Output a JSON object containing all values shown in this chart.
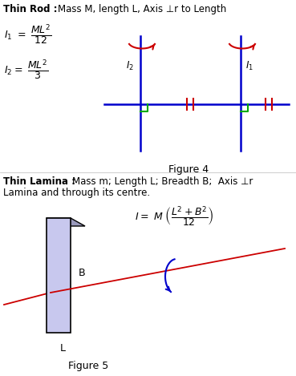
{
  "bg_color": "#ffffff",
  "title1_bold": "Thin Rod : ",
  "title1_rest": "Mass M, length L, Axis ⊥r to Length",
  "fig4_label": "Figure 4",
  "title2_bold": "Thin Lamina : ",
  "title2_rest": "Mass m; Length L; Breadth B;  Axis ⊥r",
  "title2_line2": "Lamina and through its centre.",
  "fig5_label": "Figure 5",
  "axis_color": "#0000cc",
  "red_color": "#cc0000",
  "green_color": "#00aa00",
  "lamina_face": "#c8c8ee",
  "lamina_edge": "#000000",
  "lamina_top_face": "#9999bb"
}
